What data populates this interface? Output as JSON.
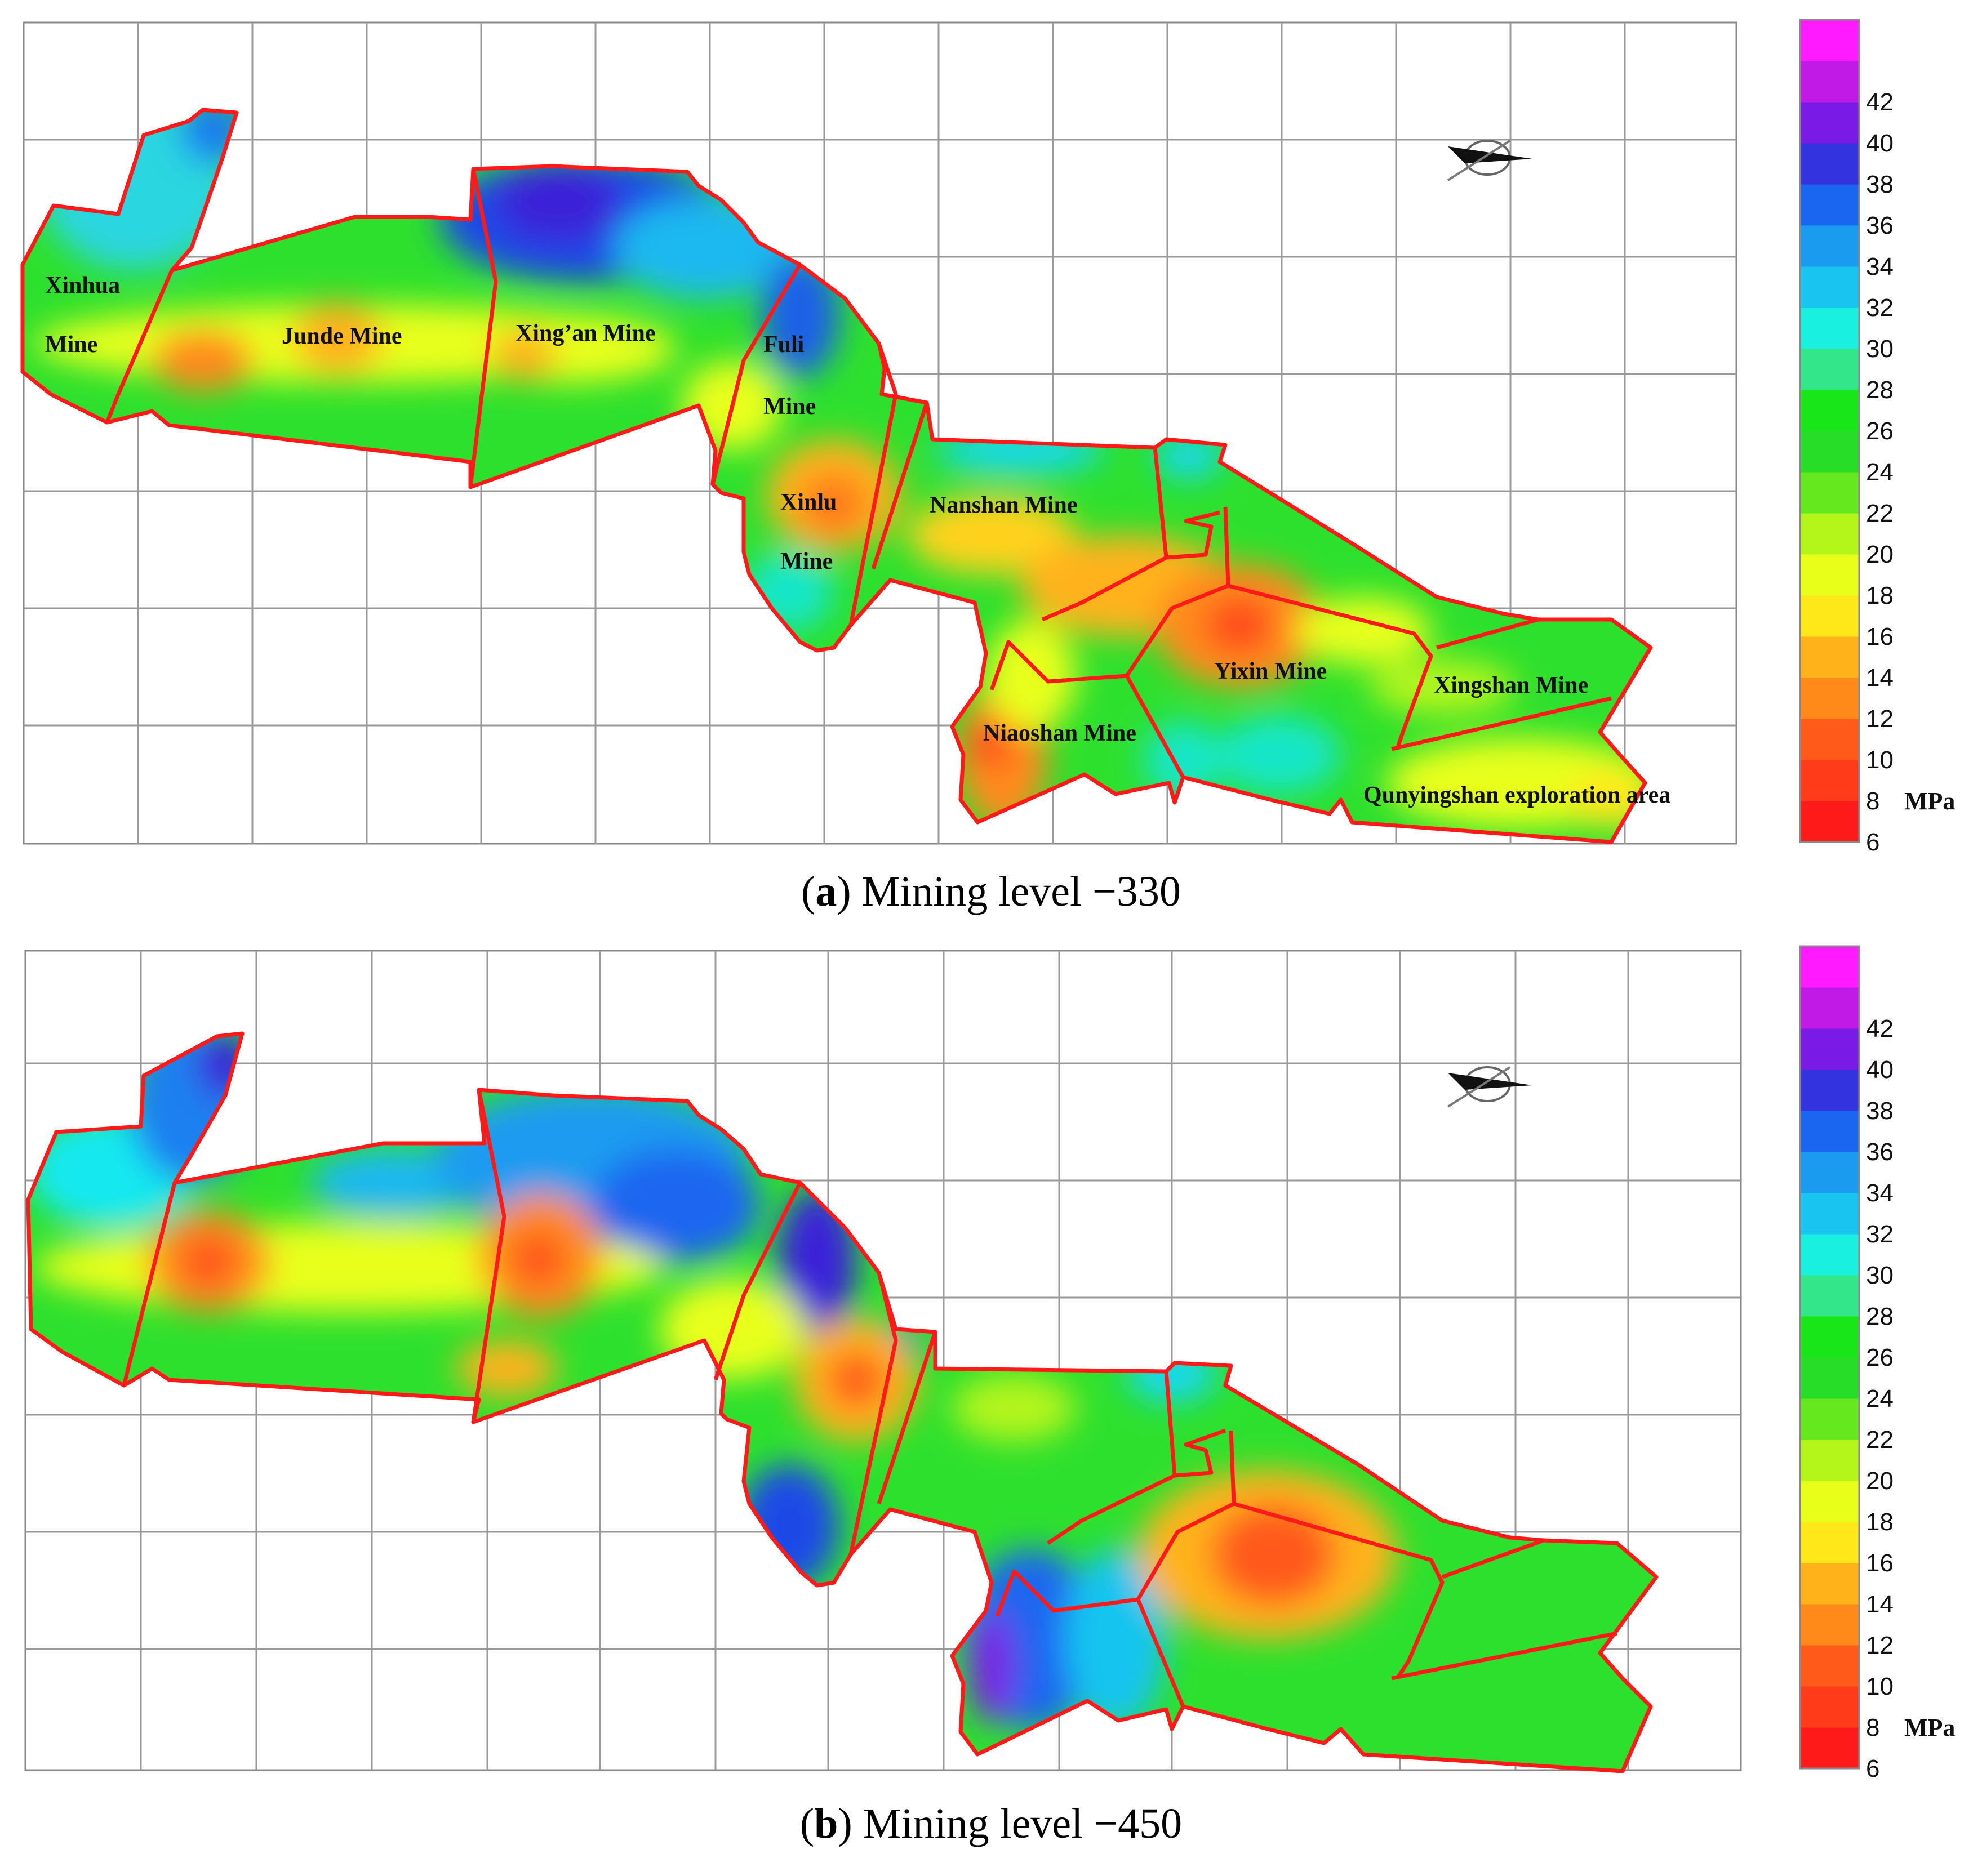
{
  "legend": {
    "unit": "MPa",
    "ticks": [
      6,
      8,
      10,
      12,
      14,
      16,
      18,
      20,
      22,
      24,
      26,
      28,
      30,
      32,
      34,
      36,
      38,
      40,
      42
    ],
    "colors": [
      "#ff1a1a",
      "#ff3b1a",
      "#ff5a1a",
      "#ff8a1a",
      "#ffb21a",
      "#ffe81a",
      "#e8ff1a",
      "#b4f51a",
      "#66e81f",
      "#28dd28",
      "#19e619",
      "#33e68a",
      "#19f0e0",
      "#19c4f0",
      "#1a9bf0",
      "#1a66f0",
      "#3333e0",
      "#7a1ae6",
      "#c21ae6",
      "#ff1aff"
    ]
  },
  "panels": [
    {
      "caption_letter": "a",
      "caption_text": "Mining level −330",
      "mines": {
        "xinhua_line1": "Xinhua",
        "xinhua_line2": "Mine",
        "junde": "Junde Mine",
        "xingan": "Xing’an Mine",
        "fuli_line1": "Fuli",
        "fuli_line2": "Mine",
        "xinlu_line1": "Xinlu",
        "xinlu_line2": "Mine",
        "nanshan": "Nanshan Mine",
        "yixin": "Yixin Mine",
        "xingshan": "Xingshan Mine",
        "niaoshan": "Niaoshan Mine",
        "qunyingshan": "Qunyingshan exploration area"
      }
    },
    {
      "caption_letter": "b",
      "caption_text": "Mining level −450"
    }
  ],
  "icons": {
    "north_arrow": "compass-arrow-icon"
  }
}
